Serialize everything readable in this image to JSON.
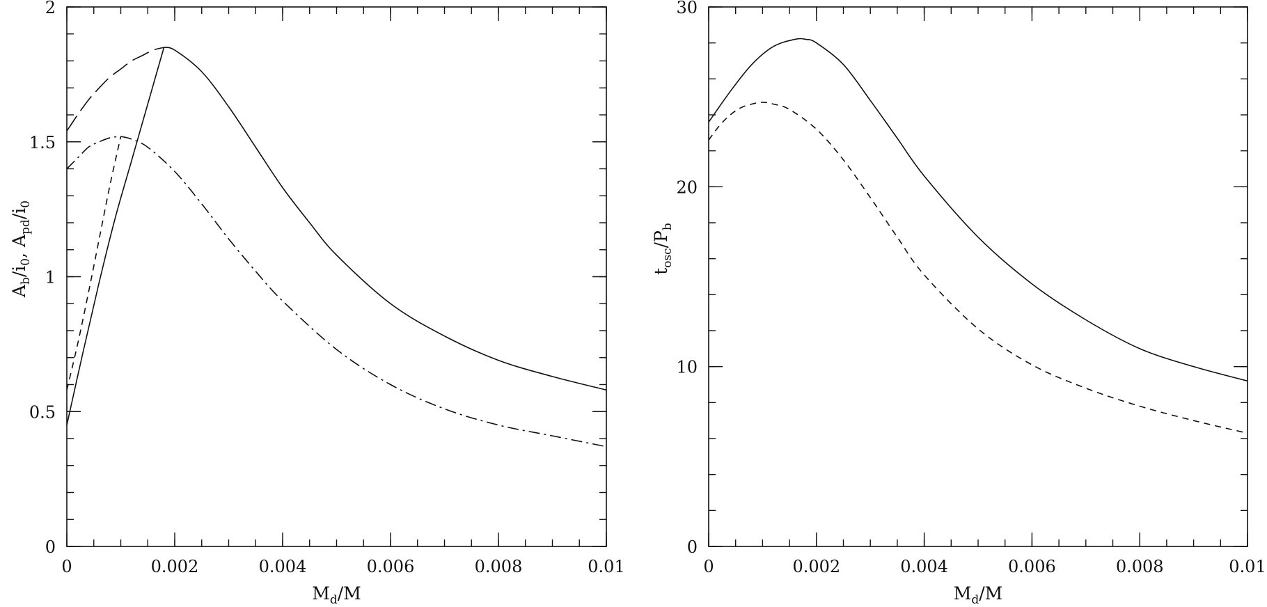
{
  "chart_data": [
    {
      "type": "line",
      "xlabel": {
        "main": "M",
        "sub": "d",
        "rest": "/M"
      },
      "ylabel": {
        "parts": [
          {
            "t": "A",
            "s": false
          },
          {
            "t": "b",
            "s": true
          },
          {
            "t": "/i",
            "s": false
          },
          {
            "t": "0",
            "s": true
          },
          {
            "t": ", A",
            "s": false
          },
          {
            "t": "pd",
            "s": true
          },
          {
            "t": "/i",
            "s": false
          },
          {
            "t": "0",
            "s": true
          }
        ]
      },
      "xlim": [
        0,
        0.01
      ],
      "ylim": [
        0,
        2
      ],
      "xticks": [
        0,
        0.002,
        0.004,
        0.006,
        0.008,
        0.01
      ],
      "xtick_labels": [
        "0",
        "0.002",
        "0.004",
        "0.006",
        "0.008",
        "0.01"
      ],
      "yticks": [
        0,
        0.5,
        1,
        1.5,
        2
      ],
      "ytick_labels": [
        "0",
        "0.5",
        "1",
        "1.5",
        "2"
      ],
      "x_minor_step": 0.0005,
      "y_minor_step": 0.1,
      "grid": false,
      "series": [
        {
          "style": "long-dash",
          "x": [
            0,
            0.0002,
            0.0004,
            0.0006,
            0.0008,
            0.001,
            0.0012,
            0.0014,
            0.0016,
            0.0018
          ],
          "y": [
            1.54,
            1.6,
            1.655,
            1.7,
            1.74,
            1.77,
            1.8,
            1.82,
            1.84,
            1.85
          ]
        },
        {
          "style": "solid",
          "x": [
            0,
            0.0003,
            0.0006,
            0.0009,
            0.0012,
            0.0015,
            0.0018
          ],
          "y": [
            0.45,
            0.72,
            0.98,
            1.22,
            1.43,
            1.64,
            1.85
          ]
        },
        {
          "style": "solid",
          "x": [
            0.0018,
            0.002,
            0.0025,
            0.003,
            0.0035,
            0.004,
            0.0045,
            0.005,
            0.006,
            0.007,
            0.008,
            0.009,
            0.01
          ],
          "y": [
            1.85,
            1.84,
            1.76,
            1.63,
            1.48,
            1.33,
            1.2,
            1.08,
            0.9,
            0.78,
            0.69,
            0.63,
            0.58
          ]
        },
        {
          "style": "dash-dot",
          "x": [
            0,
            0.0002,
            0.0004,
            0.0006,
            0.0008,
            0.001
          ],
          "y": [
            1.4,
            1.44,
            1.48,
            1.5,
            1.515,
            1.52
          ]
        },
        {
          "style": "short-dash",
          "x": [
            0,
            0.0002,
            0.0004,
            0.0006,
            0.0008,
            0.001
          ],
          "y": [
            0.58,
            0.75,
            0.94,
            1.14,
            1.34,
            1.52
          ]
        },
        {
          "style": "dash-dot",
          "x": [
            0.001,
            0.0012,
            0.0015,
            0.002,
            0.0025,
            0.003,
            0.0035,
            0.004,
            0.005,
            0.006,
            0.007,
            0.008,
            0.009,
            0.01
          ],
          "y": [
            1.52,
            1.51,
            1.48,
            1.39,
            1.27,
            1.14,
            1.02,
            0.91,
            0.73,
            0.6,
            0.51,
            0.45,
            0.41,
            0.37
          ]
        }
      ]
    },
    {
      "type": "line",
      "xlabel": {
        "main": "M",
        "sub": "d",
        "rest": "/M"
      },
      "ylabel": {
        "parts": [
          {
            "t": "t",
            "s": false
          },
          {
            "t": "osc",
            "s": true
          },
          {
            "t": "/P",
            "s": false
          },
          {
            "t": "b",
            "s": true
          }
        ]
      },
      "xlim": [
        0,
        0.01
      ],
      "ylim": [
        0,
        30
      ],
      "xticks": [
        0,
        0.002,
        0.004,
        0.006,
        0.008,
        0.01
      ],
      "xtick_labels": [
        "0",
        "0.002",
        "0.004",
        "0.006",
        "0.008",
        "0.01"
      ],
      "yticks": [
        0,
        10,
        20,
        30
      ],
      "ytick_labels": [
        "0",
        "10",
        "20",
        "30"
      ],
      "x_minor_step": 0.0005,
      "y_minor_step": 2,
      "grid": false,
      "series": [
        {
          "style": "solid",
          "x": [
            0,
            0.0004,
            0.0008,
            0.0012,
            0.0016,
            0.0018,
            0.002,
            0.0025,
            0.003,
            0.0035,
            0.004,
            0.005,
            0.006,
            0.007,
            0.008,
            0.009,
            0.01
          ],
          "y": [
            23.6,
            25.3,
            26.8,
            27.8,
            28.2,
            28.2,
            28.0,
            26.8,
            24.8,
            22.7,
            20.6,
            17.2,
            14.6,
            12.6,
            11.0,
            10.0,
            9.2
          ]
        },
        {
          "style": "short-dash",
          "x": [
            0,
            0.0002,
            0.0004,
            0.0006,
            0.0008,
            0.001,
            0.0012,
            0.0015,
            0.002,
            0.0025,
            0.003,
            0.0035,
            0.004,
            0.005,
            0.006,
            0.007,
            0.008,
            0.009,
            0.01
          ],
          "y": [
            22.6,
            23.4,
            24.0,
            24.4,
            24.6,
            24.7,
            24.6,
            24.3,
            23.2,
            21.5,
            19.4,
            17.2,
            15.1,
            12.1,
            10.1,
            8.8,
            7.8,
            7.0,
            6.3
          ]
        }
      ]
    }
  ]
}
